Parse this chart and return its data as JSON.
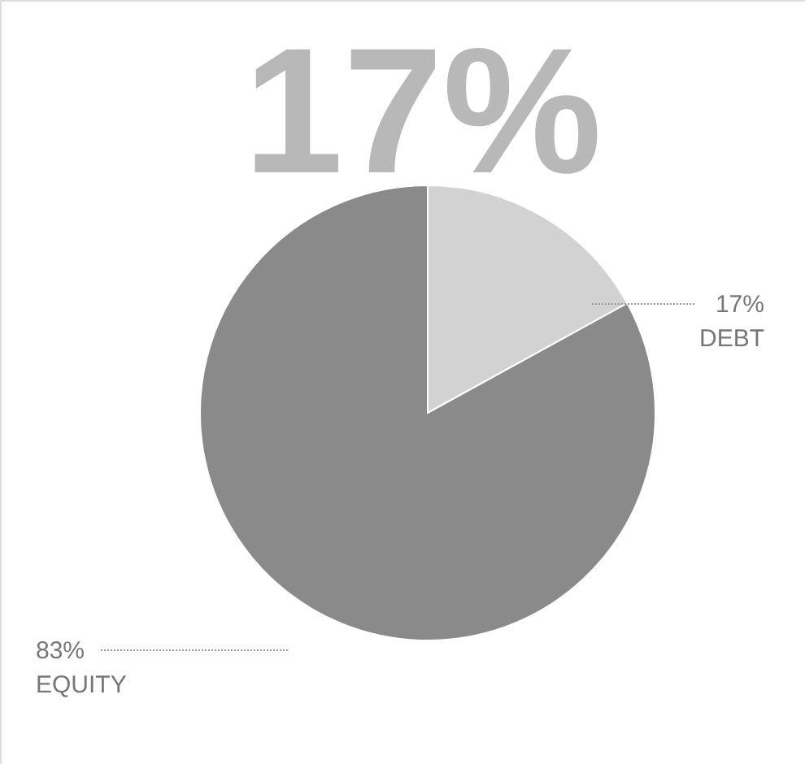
{
  "chart_data": {
    "type": "pie",
    "title": "17%",
    "categories": [
      "DEBT",
      "EQUITY"
    ],
    "values": [
      17,
      83
    ],
    "colors": [
      "#d2d2d2",
      "#8a8a8a"
    ],
    "value_labels": [
      "17%",
      "83%"
    ]
  }
}
